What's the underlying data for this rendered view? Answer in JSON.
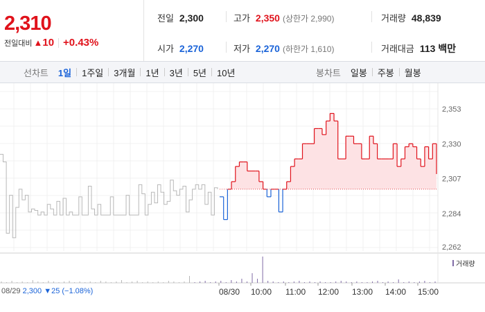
{
  "quote": {
    "current_price": "2,310",
    "change_label": "전일대비",
    "change_arrow": "▲",
    "change_value": "10",
    "change_rate": "+0.43%"
  },
  "info": {
    "prev_close_label": "전일",
    "prev_close": "2,300",
    "high_label": "고가",
    "high": "2,350",
    "upper_limit": "(상한가 2,990)",
    "volume_label": "거래량",
    "volume": "48,839",
    "open_label": "시가",
    "open": "2,270",
    "low_label": "저가",
    "low": "2,270",
    "lower_limit": "(하한가 1,610)",
    "amount_label": "거래대금",
    "amount": "113 백만"
  },
  "period_tabs": {
    "title": "선차트",
    "items": [
      "1일",
      "1주일",
      "3개월",
      "1년",
      "3년",
      "5년",
      "10년"
    ],
    "active": "1일"
  },
  "candle_tabs": {
    "title": "봉차트",
    "items": [
      "일봉",
      "주봉",
      "월봉"
    ]
  },
  "footer": {
    "date": "08/29",
    "price": "2,300",
    "change": "▼25 (−1.08%)"
  },
  "legend": {
    "label": "거래량"
  },
  "colors": {
    "up": "#e0121b",
    "down": "#1a63d8",
    "prev_day_line": "#b8b8b8",
    "fill": "#fde2e4",
    "volume": "#7f6aa5"
  },
  "chart_data": {
    "type": "line",
    "y_ticks": [
      "2,353",
      "2,330",
      "2,307",
      "2,284",
      "2,262"
    ],
    "y_tick_values": [
      2353,
      2330,
      2307,
      2284,
      2262
    ],
    "x_labels": [
      "08/29",
      "08/30",
      "10:00",
      "11:00",
      "12:00",
      "13:00",
      "14:00",
      "15:00"
    ],
    "reference_price": 2300,
    "previous_day_series": [
      2323,
      2318,
      2271,
      2296,
      2268,
      2288,
      2300,
      2293,
      2296,
      2285,
      2287,
      2286,
      2283,
      2285,
      2283,
      2290,
      2287,
      2283,
      2292,
      2283,
      2294,
      2283,
      2285,
      2283,
      2283,
      2295,
      2283,
      2283,
      2302,
      2287,
      2283,
      2290,
      2283,
      2283,
      2283,
      2295,
      2283,
      2283,
      2283,
      2283,
      2296,
      2283,
      2283,
      2283,
      2303,
      2297,
      2283,
      2290,
      2298,
      2291,
      2303,
      2298,
      2290,
      2292,
      2306,
      2299,
      2296,
      2300,
      2302,
      2285,
      2293,
      2300,
      2303,
      2300,
      2303,
      2290,
      2298,
      2283,
      2301,
      2300
    ],
    "today_series": [
      2295,
      2280,
      2300,
      2305,
      2315,
      2318,
      2318,
      2312,
      2312,
      2312,
      2305,
      2300,
      2295,
      2300,
      2300,
      2285,
      2300,
      2305,
      2315,
      2320,
      2320,
      2330,
      2330,
      2330,
      2340,
      2340,
      2336,
      2345,
      2350,
      2345,
      2320,
      2320,
      2335,
      2335,
      2330,
      2330,
      2320,
      2320,
      2335,
      2330,
      2320,
      2320,
      2320,
      2320,
      2330,
      2315,
      2320,
      2328,
      2330,
      2328,
      2320,
      2315,
      2328,
      2320,
      2330,
      2310
    ],
    "volume_heights": [
      2,
      1,
      3,
      1,
      2,
      1,
      4,
      2,
      1,
      3,
      2,
      1,
      2,
      3,
      1,
      2,
      1,
      2,
      1,
      3,
      2,
      1,
      2,
      4,
      1,
      2,
      3,
      1,
      2,
      1,
      2,
      1,
      3,
      2,
      1,
      2,
      10,
      1,
      2,
      3,
      1,
      2,
      3,
      1,
      4,
      2,
      6,
      2,
      14,
      6,
      38,
      3,
      2,
      1,
      2,
      1,
      2,
      3,
      1,
      2,
      1,
      2,
      1,
      1,
      2,
      3,
      2,
      1,
      2,
      1,
      1,
      2,
      3,
      1,
      2,
      1,
      5,
      1,
      2,
      1,
      2,
      3,
      1,
      2
    ]
  }
}
